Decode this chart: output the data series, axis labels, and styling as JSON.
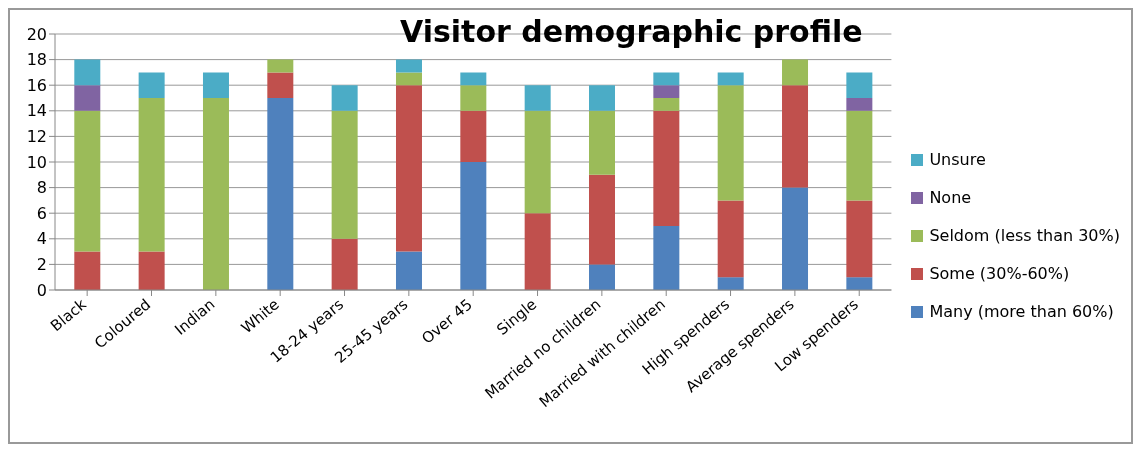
{
  "chart_data": {
    "type": "bar",
    "title": "Visitor demographic profile",
    "stacked": true,
    "categories": [
      "Black",
      "Coloured",
      "Indian",
      "White",
      "18-24 years",
      "25-45 years",
      "Over 45",
      "Single",
      "Married no children",
      "Married with children",
      "High spenders",
      "Average spenders",
      "Low spenders"
    ],
    "series": [
      {
        "name": "Many (more than 60%)",
        "color": "#4f81bd",
        "values": [
          0,
          0,
          0,
          15,
          0,
          3,
          10,
          0,
          2,
          5,
          1,
          8,
          1
        ]
      },
      {
        "name": "Some (30%-60%)",
        "color": "#c0504d",
        "values": [
          3,
          3,
          0,
          2,
          4,
          13,
          4,
          6,
          7,
          9,
          6,
          8,
          6
        ]
      },
      {
        "name": "Seldom (less than 30%)",
        "color": "#9bbb59",
        "values": [
          11,
          12,
          15,
          1,
          10,
          1,
          2,
          8,
          5,
          1,
          9,
          2,
          7
        ]
      },
      {
        "name": "None",
        "color": "#8064a2",
        "values": [
          2,
          0,
          0,
          0,
          0,
          0,
          0,
          0,
          0,
          1,
          0,
          0,
          1
        ]
      },
      {
        "name": "Unsure",
        "color": "#4bacc6",
        "values": [
          2,
          2,
          2,
          0,
          2,
          1,
          1,
          2,
          2,
          1,
          1,
          0,
          2
        ]
      }
    ],
    "ylim": [
      0,
      20
    ],
    "yticks": [
      0,
      2,
      4,
      6,
      8,
      10,
      12,
      14,
      16,
      18,
      20
    ],
    "grid": "y",
    "legend": "right"
  }
}
